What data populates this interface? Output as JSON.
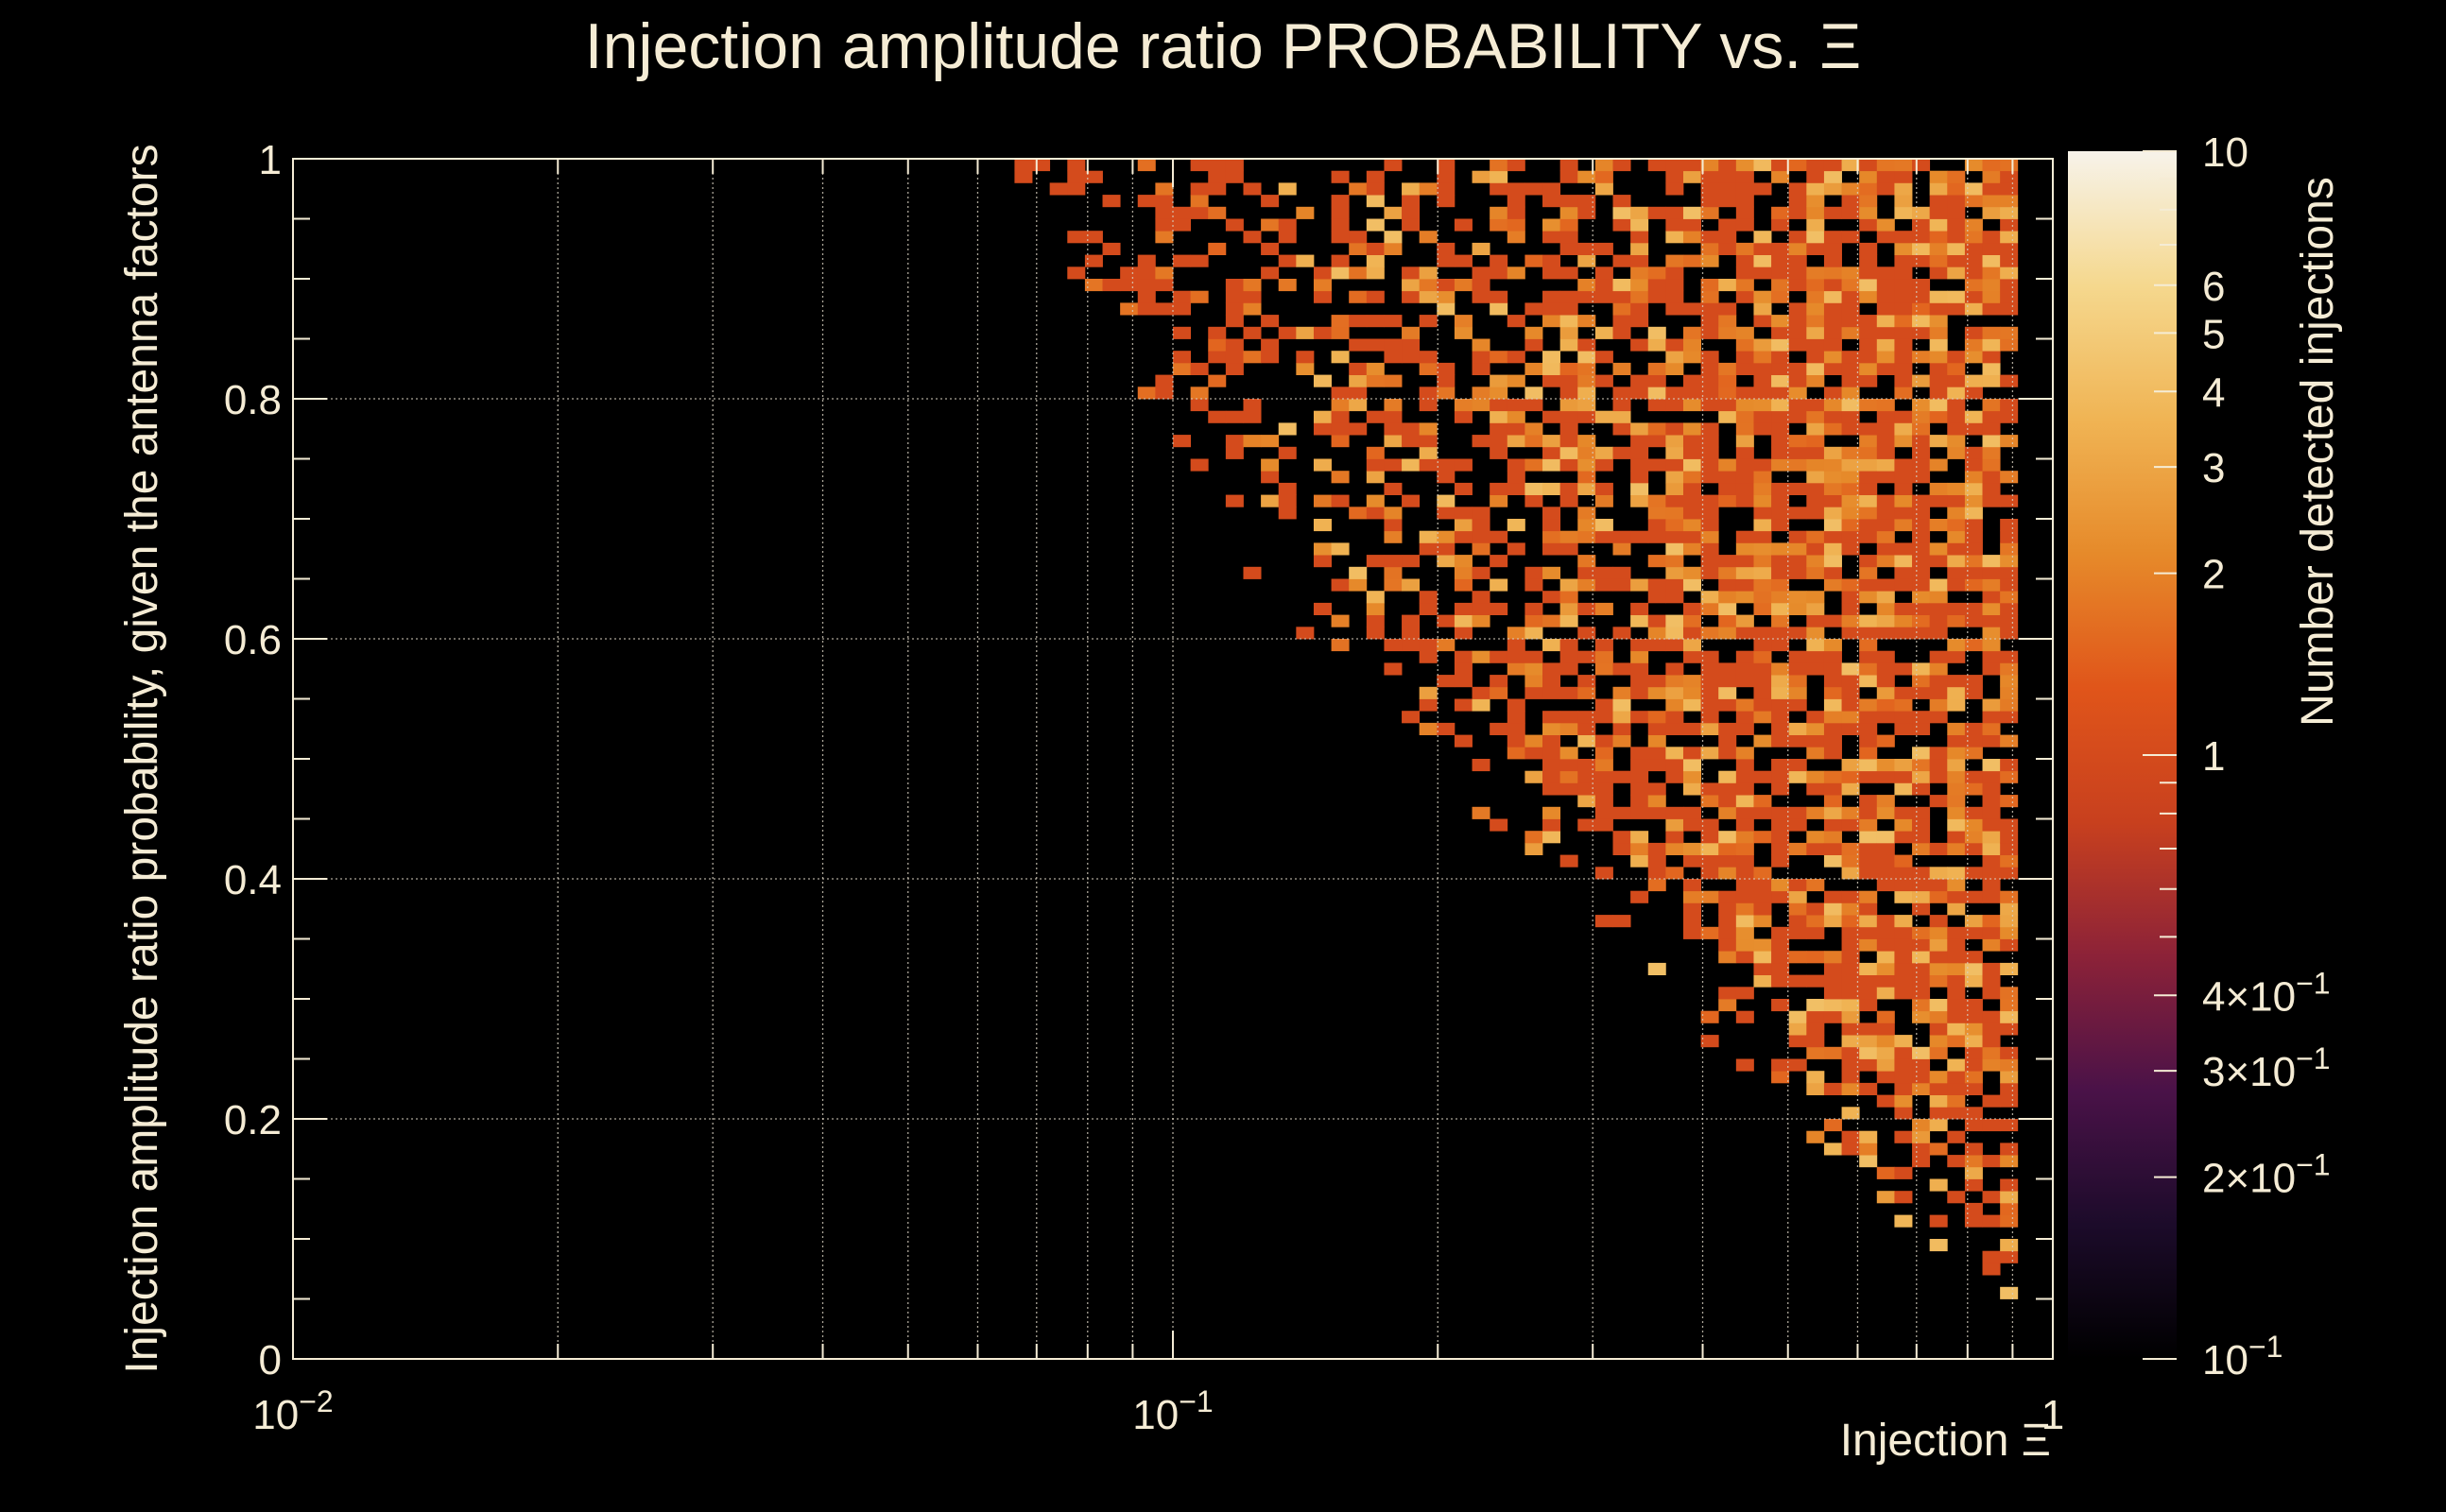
{
  "chart_data": {
    "type": "heatmap",
    "title": "Injection amplitude ratio PROBABILITY vs.  Ξ",
    "xlabel": "Injection Ξ",
    "ylabel": "Injection amplitude ratio probability, given the antenna factors",
    "zlabel": "Number detected injections",
    "x_scale": "log",
    "xlim": [
      0.01,
      1
    ],
    "ylim": [
      0,
      1
    ],
    "z_scale": "log",
    "zlim": [
      0.1,
      10
    ],
    "x_ticks": [
      {
        "value": 0.01,
        "base": "10",
        "exp": "−2"
      },
      {
        "value": 0.1,
        "base": "10",
        "exp": "−1"
      },
      {
        "value": 1,
        "base": "1",
        "exp": ""
      }
    ],
    "y_ticks": [
      "0",
      "0.2",
      "0.4",
      "0.6",
      "0.8",
      "1"
    ],
    "z_ticks": [
      {
        "value": 10,
        "label": "10",
        "exp": ""
      },
      {
        "value": 6,
        "label": "6",
        "exp": ""
      },
      {
        "value": 5,
        "label": "5",
        "exp": ""
      },
      {
        "value": 4,
        "label": "4",
        "exp": ""
      },
      {
        "value": 3,
        "label": "3",
        "exp": ""
      },
      {
        "value": 2,
        "label": "2",
        "exp": ""
      },
      {
        "value": 1,
        "label": "1",
        "exp": ""
      },
      {
        "value": 0.4,
        "label": "4×10",
        "exp": "−1"
      },
      {
        "value": 0.3,
        "label": "3×10",
        "exp": "−1"
      },
      {
        "value": 0.2,
        "label": "2×10",
        "exp": "−1"
      },
      {
        "value": 0.1,
        "label": "10",
        "exp": "−1"
      }
    ],
    "grid": true,
    "bins": {
      "x_log_min": -1.2,
      "x_log_max": -0.04,
      "nx": 58,
      "ny": 100
    },
    "counts_summary": "Sparse occupancy (counts 1–3) begins near Ξ≈0.063 at high probability; the lower edge of the populated region falls from ~0.95 at Ξ≈0.065 to ~0.08 at Ξ≈0.85; densest region Ξ 0.2–0.9 with counts up to ~4",
    "colormap": [
      "#000000",
      "#1c0b2a",
      "#4a1248",
      "#8c2238",
      "#c8401e",
      "#e0551a",
      "#e68a2a",
      "#f0b454",
      "#f5d88e",
      "#f7f3ea"
    ]
  }
}
